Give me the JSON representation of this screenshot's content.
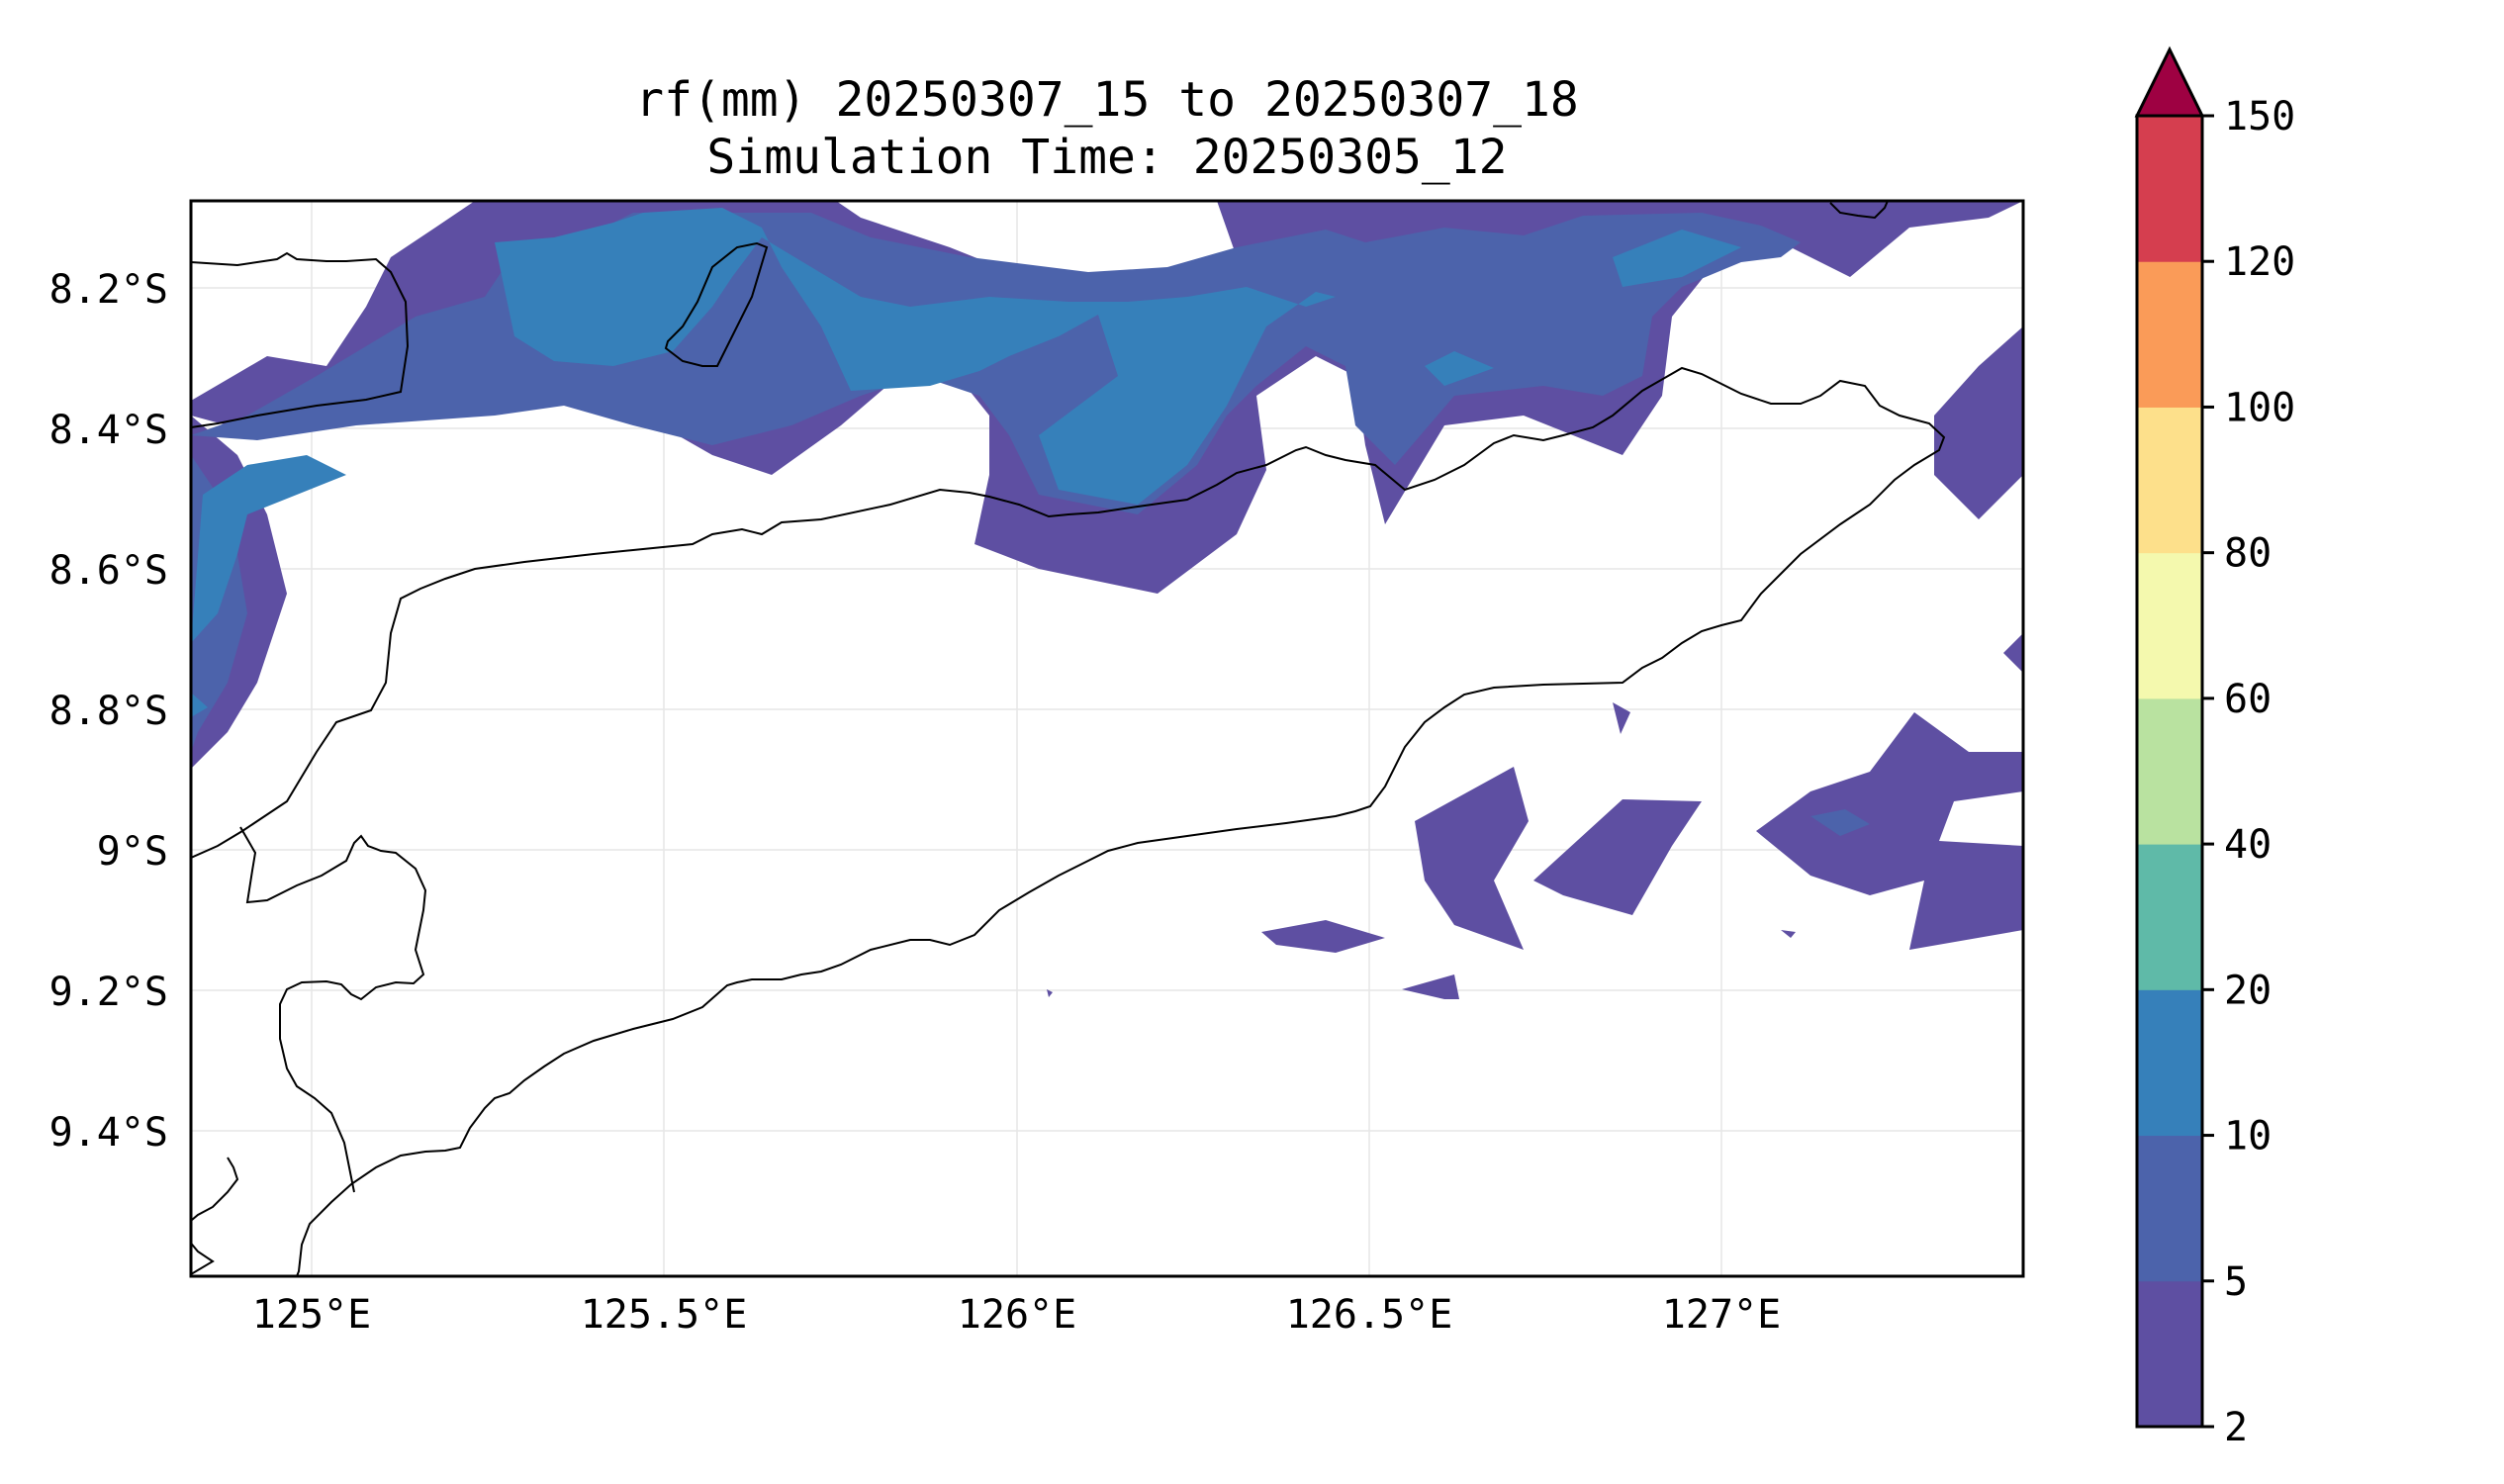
{
  "figure": {
    "title_line1": "rf(mm) 20250307_15 to 20250307_18",
    "title_line2": "Simulation Time: 20250305_12"
  },
  "chart_data": {
    "type": "contour-map",
    "variable": "rf(mm)",
    "x_ticks": [
      "125°E",
      "125.5°E",
      "126°E",
      "126.5°E",
      "127°E"
    ],
    "y_ticks": [
      "8.2°S",
      "8.4°S",
      "8.6°S",
      "8.8°S",
      "9°S",
      "9.2°S",
      "9.4°S"
    ],
    "grid": true,
    "colorbar": {
      "levels": [
        "2",
        "5",
        "10",
        "20",
        "40",
        "60",
        "80",
        "100",
        "120",
        "150"
      ],
      "colors": [
        "#5e4fa2",
        "#4c63ab",
        "#3680ba",
        "#5fbaa8",
        "#b9e2a0",
        "#f4f9ae",
        "#fde08b",
        "#fa9b58",
        "#d53e4f"
      ],
      "extend_color": "#9e0142",
      "extend": "max"
    }
  }
}
